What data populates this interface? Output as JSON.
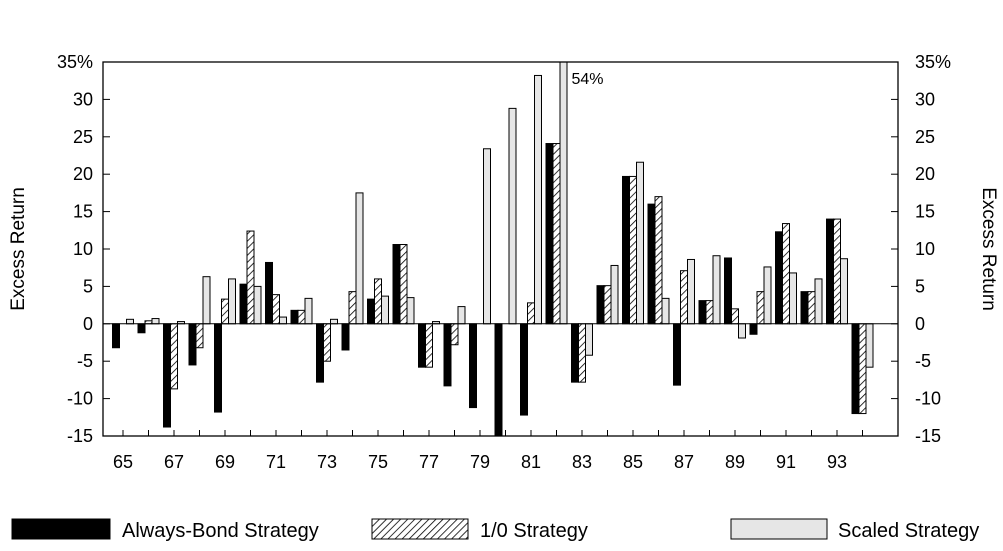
{
  "chart_data": {
    "type": "bar",
    "years": [
      "65",
      "66",
      "67",
      "68",
      "69",
      "70",
      "71",
      "72",
      "73",
      "74",
      "75",
      "76",
      "77",
      "78",
      "79",
      "80",
      "81",
      "82",
      "83",
      "84",
      "85",
      "86",
      "87",
      "88",
      "89",
      "90",
      "91",
      "92",
      "93",
      "94"
    ],
    "x_tick_labels": [
      "65",
      "67",
      "69",
      "71",
      "73",
      "75",
      "77",
      "79",
      "81",
      "83",
      "85",
      "87",
      "89",
      "91",
      "93"
    ],
    "ylim": [
      -15,
      35
    ],
    "y_ticks": [
      -15,
      -10,
      -5,
      0,
      5,
      10,
      15,
      20,
      25,
      30,
      35
    ],
    "y_tick_labels": [
      "-15",
      "-10",
      "-5",
      "0",
      "5",
      "10",
      "15",
      "20",
      "25",
      "30",
      "35%"
    ],
    "ylabel_left": "Excess Return",
    "ylabel_right": "Excess Return",
    "annotation": {
      "text": "54%",
      "year": "82",
      "series": "Scaled Strategy"
    },
    "series": [
      {
        "name": "Always-Bond Strategy",
        "style": "solid",
        "color": "#000000",
        "values": [
          -3.2,
          -1.2,
          -13.8,
          -5.5,
          -11.8,
          5.3,
          8.2,
          1.8,
          -7.8,
          -3.5,
          3.3,
          10.6,
          -5.8,
          -8.3,
          -11.2,
          -15.5,
          -12.2,
          24.1,
          -7.8,
          5.1,
          19.7,
          16.0,
          -8.2,
          3.1,
          8.8,
          -1.4,
          12.3,
          4.3,
          14.0,
          -12.0
        ]
      },
      {
        "name": "1/0 Strategy",
        "style": "hatched",
        "color": "#000000",
        "values": [
          0,
          0.4,
          -8.7,
          -3.2,
          3.3,
          12.4,
          3.9,
          1.8,
          -5.0,
          4.3,
          6.0,
          10.6,
          -5.8,
          -2.8,
          0,
          0,
          2.8,
          24.1,
          -7.8,
          5.1,
          19.7,
          17.0,
          7.1,
          3.1,
          2.0,
          4.3,
          13.4,
          4.3,
          14.0,
          -12.0
        ]
      },
      {
        "name": "Scaled Strategy",
        "style": "light",
        "color": "#e6e6e6",
        "values": [
          0.6,
          0.7,
          0.3,
          6.3,
          6.0,
          5.0,
          0.9,
          3.4,
          0.6,
          17.5,
          3.7,
          3.5,
          0.3,
          2.3,
          23.4,
          28.8,
          33.2,
          35,
          -4.2,
          7.8,
          21.6,
          3.4,
          8.6,
          9.1,
          -1.9,
          7.6,
          6.8,
          6.0,
          8.7,
          -5.8
        ]
      }
    ],
    "legend": [
      "Always-Bond Strategy",
      "1/0 Strategy",
      "Scaled Strategy"
    ],
    "legend_placement": "bottom",
    "grid": false
  }
}
